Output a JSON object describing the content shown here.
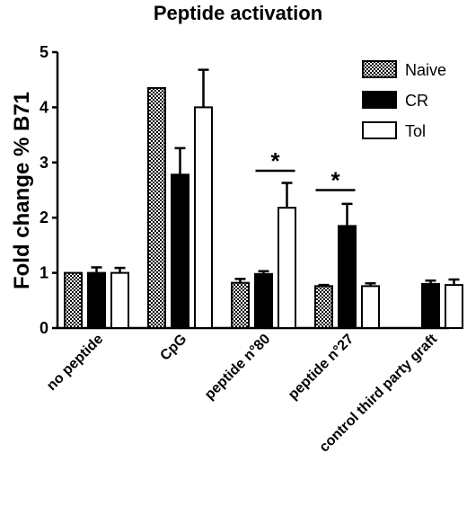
{
  "chart_data": {
    "type": "bar",
    "title": "Peptide activation",
    "xlabel": "",
    "ylabel": "Fold change % B71",
    "ylim": [
      0,
      5
    ],
    "yticks": [
      "0",
      "1",
      "2",
      "3",
      "4",
      "5"
    ],
    "categories": [
      "no peptide",
      "CpG",
      "peptide n°80",
      "peptide n°27",
      "control third party graft"
    ],
    "series": [
      {
        "name": "Naive",
        "fill": "checker",
        "values": [
          1.0,
          4.35,
          0.82,
          0.76,
          null
        ],
        "errors": [
          0.0,
          0.0,
          0.07,
          0.02,
          null
        ]
      },
      {
        "name": "CR",
        "fill": "#000000",
        "values": [
          1.0,
          2.78,
          0.98,
          1.85,
          0.8
        ],
        "errors": [
          0.1,
          0.48,
          0.05,
          0.4,
          0.06
        ]
      },
      {
        "name": "Tol",
        "fill": "#ffffff",
        "values": [
          1.0,
          4.0,
          2.18,
          0.76,
          0.78
        ],
        "errors": [
          0.09,
          0.68,
          0.45,
          0.05,
          0.1
        ]
      }
    ],
    "significance": [
      {
        "category": "peptide n°80",
        "from": "CR",
        "to": "Tol",
        "label": "*",
        "level": 2.85
      },
      {
        "category": "peptide n°27",
        "from": "Naive",
        "to": "CR",
        "label": "*",
        "level": 2.5
      }
    ],
    "legend_position": "top-right",
    "grid": false
  }
}
